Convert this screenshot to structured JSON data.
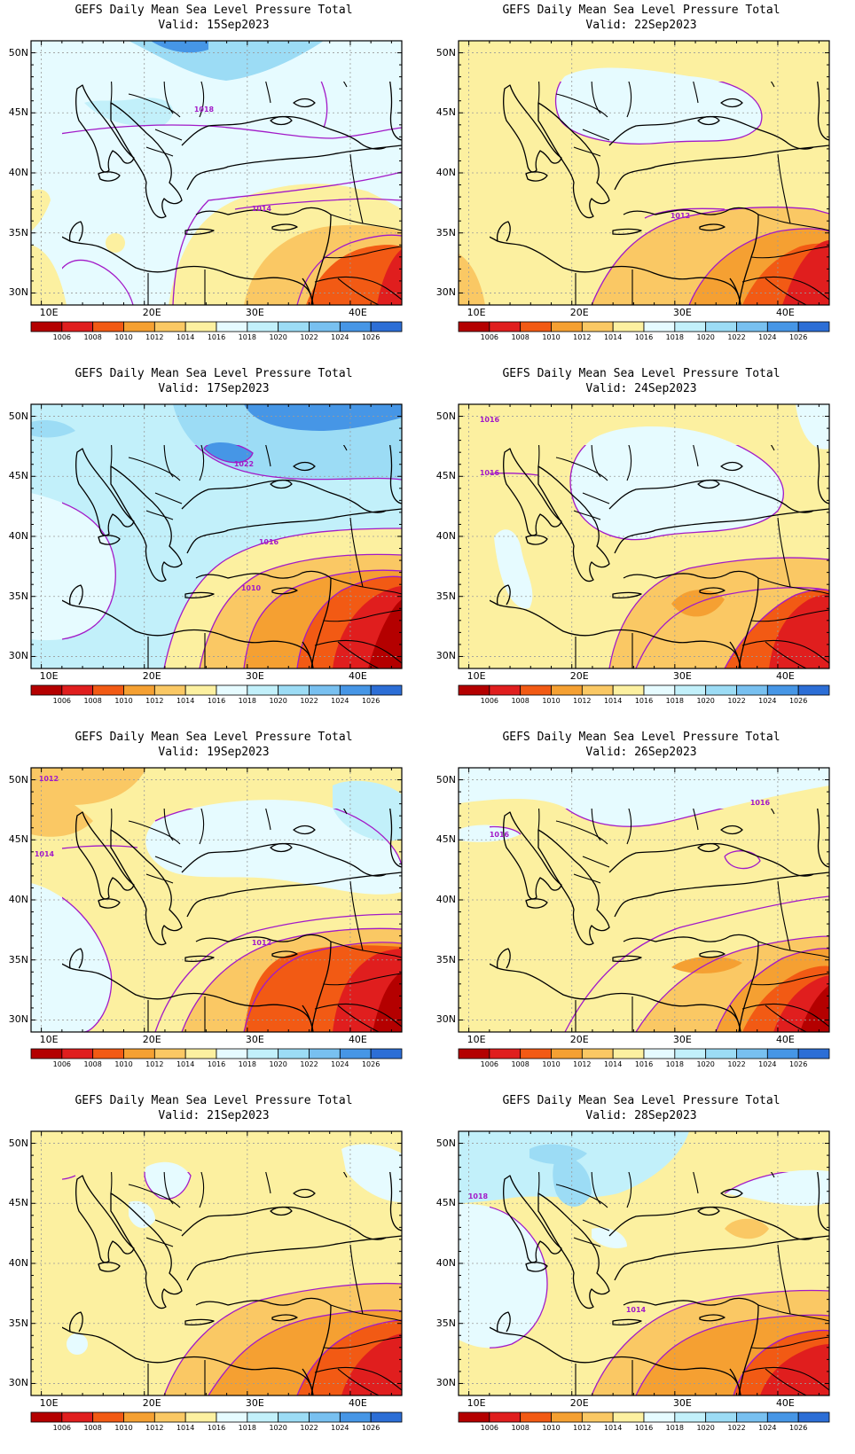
{
  "panels": [
    {
      "title": "GEFS Daily Mean Sea Level Pressure Total",
      "valid": "Valid: 15Sep2023",
      "base": "north",
      "contour_labels": [
        "1018",
        "1014"
      ]
    },
    {
      "title": "GEFS Daily Mean Sea Level Pressure Total",
      "valid": "Valid: 22Sep2023",
      "base": "warm",
      "contour_labels": [
        "1012"
      ]
    },
    {
      "title": "GEFS Daily Mean Sea Level Pressure Total",
      "valid": "Valid: 17Sep2023",
      "base": "north",
      "contour_labels": [
        "1022",
        "1016",
        "1010"
      ]
    },
    {
      "title": "GEFS Daily Mean Sea Level Pressure Total",
      "valid": "Valid: 24Sep2023",
      "base": "warm",
      "contour_labels": [
        "1016",
        "1016"
      ]
    },
    {
      "title": "GEFS Daily Mean Sea Level Pressure Total",
      "valid": "Valid: 19Sep2023",
      "base": "warm",
      "contour_labels": [
        "1012",
        "1014",
        "1012"
      ]
    },
    {
      "title": "GEFS Daily Mean Sea Level Pressure Total",
      "valid": "Valid: 26Sep2023",
      "base": "warm",
      "contour_labels": [
        "1016",
        "1016"
      ]
    },
    {
      "title": "GEFS Daily Mean Sea Level Pressure Total",
      "valid": "Valid: 21Sep2023",
      "base": "warm",
      "contour_labels": []
    },
    {
      "title": "GEFS Daily Mean Sea Level Pressure Total",
      "valid": "Valid: 28Sep2023",
      "base": "north",
      "contour_labels": [
        "1018",
        "1014"
      ]
    }
  ],
  "axes": {
    "x_ticks": [
      "10E",
      "20E",
      "30E",
      "40E"
    ],
    "y_ticks": [
      "50N",
      "45N",
      "40N",
      "35N",
      "30N"
    ]
  },
  "colorbar": {
    "labels": [
      "1006",
      "1008",
      "1010",
      "1012",
      "1014",
      "1016",
      "1018",
      "1020",
      "1022",
      "1024",
      "1026"
    ],
    "colors": [
      "#b40000",
      "#e01e1e",
      "#f25a14",
      "#f5a032",
      "#fac864",
      "#fcf0a0",
      "#e6fbff",
      "#c2f0fa",
      "#9cdcf5",
      "#78c0f0",
      "#4696e6",
      "#2c6ed6"
    ]
  },
  "colors": {
    "contour": "#a21ac8",
    "coast": "#000000",
    "grid": "#9a9a9a"
  }
}
